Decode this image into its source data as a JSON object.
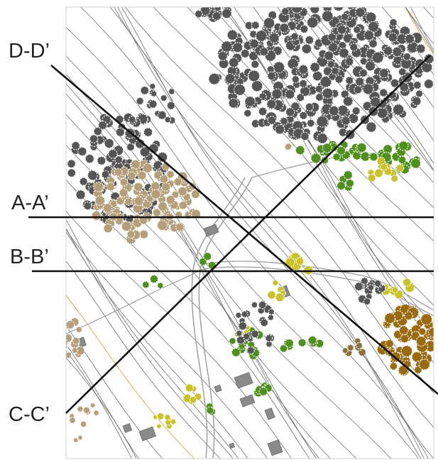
{
  "sections": [
    {
      "id": "d",
      "label": "D-D’"
    },
    {
      "id": "a",
      "label": "A-A’"
    },
    {
      "id": "b",
      "label": "B-B’"
    },
    {
      "id": "c",
      "label": "C-C’"
    }
  ],
  "colors": {
    "contour": "#6e6e6e",
    "contour_highlight": "#c9a227",
    "section_line": "#111111",
    "tree_dark": "#555555",
    "tree_tan": "#b59f7a",
    "tree_green": "#4f8f1e",
    "tree_yellow": "#c9c22a",
    "tree_brown": "#9a6a10",
    "building": "#8a8a8a"
  }
}
